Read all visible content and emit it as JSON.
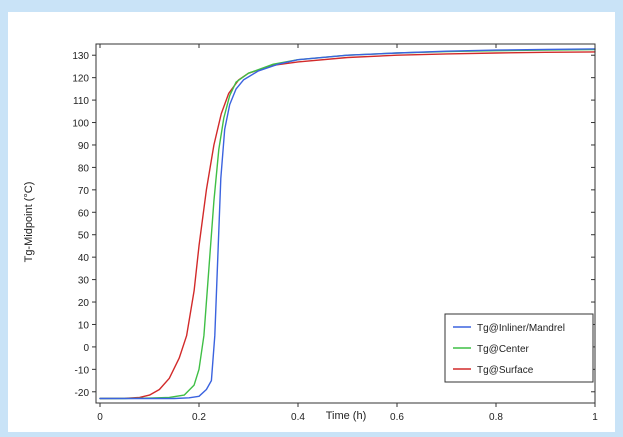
{
  "chart_data": {
    "type": "line",
    "title": "",
    "xlabel": "Time (h)",
    "ylabel": "Tg-Midpoint (°C)",
    "xlim": [
      0,
      1
    ],
    "ylim": [
      -25,
      135
    ],
    "x_ticks": [
      {
        "value": 0,
        "label": "0"
      },
      {
        "value": 0.2,
        "label": "0.2"
      },
      {
        "value": 0.4,
        "label": "0.4"
      },
      {
        "value": 0.6,
        "label": "0.6"
      },
      {
        "value": 0.8,
        "label": "0.8"
      },
      {
        "value": 1,
        "label": "1"
      }
    ],
    "y_ticks": [
      {
        "value": 130,
        "label": "130"
      },
      {
        "value": 120,
        "label": "120"
      },
      {
        "value": 110,
        "label": "110"
      },
      {
        "value": 100,
        "label": "100"
      },
      {
        "value": 90,
        "label": "90"
      },
      {
        "value": 80,
        "label": "80"
      },
      {
        "value": 70,
        "label": "70"
      },
      {
        "value": 60,
        "label": "60"
      },
      {
        "value": 50,
        "label": "50"
      },
      {
        "value": 40,
        "label": "40"
      },
      {
        "value": 30,
        "label": "30"
      },
      {
        "value": 20,
        "label": "20"
      },
      {
        "value": 10,
        "label": "10"
      },
      {
        "value": 0,
        "label": "0"
      },
      {
        "value": -10,
        "label": "-10"
      },
      {
        "value": -20,
        "label": "-20"
      }
    ],
    "grid": false,
    "legend_position": "bottom-right",
    "series": [
      {
        "name": "Tg@Inliner/Mandrel",
        "color": "#3b63df",
        "points": [
          [
            0,
            -23
          ],
          [
            0.05,
            -23
          ],
          [
            0.1,
            -23
          ],
          [
            0.15,
            -23
          ],
          [
            0.18,
            -22.7
          ],
          [
            0.2,
            -22
          ],
          [
            0.215,
            -19
          ],
          [
            0.225,
            -15
          ],
          [
            0.232,
            5
          ],
          [
            0.238,
            40
          ],
          [
            0.244,
            75
          ],
          [
            0.252,
            97
          ],
          [
            0.262,
            108
          ],
          [
            0.275,
            115
          ],
          [
            0.29,
            119
          ],
          [
            0.32,
            123
          ],
          [
            0.36,
            126
          ],
          [
            0.4,
            128
          ],
          [
            0.5,
            130
          ],
          [
            0.6,
            131
          ],
          [
            0.7,
            131.8
          ],
          [
            0.8,
            132.3
          ],
          [
            0.9,
            132.6
          ],
          [
            1.0,
            132.8
          ]
        ]
      },
      {
        "name": "Tg@Center",
        "color": "#3fbf45",
        "points": [
          [
            0,
            -23
          ],
          [
            0.05,
            -23
          ],
          [
            0.1,
            -22.8
          ],
          [
            0.14,
            -22.5
          ],
          [
            0.17,
            -21.5
          ],
          [
            0.19,
            -17
          ],
          [
            0.2,
            -10
          ],
          [
            0.21,
            5
          ],
          [
            0.22,
            35
          ],
          [
            0.23,
            65
          ],
          [
            0.24,
            88
          ],
          [
            0.25,
            102
          ],
          [
            0.262,
            112
          ],
          [
            0.275,
            118
          ],
          [
            0.3,
            122
          ],
          [
            0.35,
            126
          ],
          [
            0.4,
            128
          ],
          [
            0.5,
            130
          ],
          [
            0.6,
            131
          ],
          [
            0.7,
            131.6
          ],
          [
            0.8,
            132
          ],
          [
            0.9,
            132.3
          ],
          [
            1.0,
            132.5
          ]
        ]
      },
      {
        "name": "Tg@Surface",
        "color": "#d22a2a",
        "points": [
          [
            0,
            -23
          ],
          [
            0.05,
            -22.9
          ],
          [
            0.08,
            -22.5
          ],
          [
            0.1,
            -21.5
          ],
          [
            0.12,
            -19
          ],
          [
            0.14,
            -14
          ],
          [
            0.16,
            -5
          ],
          [
            0.175,
            5
          ],
          [
            0.19,
            25
          ],
          [
            0.2,
            45
          ],
          [
            0.215,
            70
          ],
          [
            0.23,
            90
          ],
          [
            0.245,
            104
          ],
          [
            0.26,
            113
          ],
          [
            0.28,
            119
          ],
          [
            0.3,
            122
          ],
          [
            0.35,
            125.5
          ],
          [
            0.4,
            127
          ],
          [
            0.5,
            129
          ],
          [
            0.6,
            130
          ],
          [
            0.7,
            130.6
          ],
          [
            0.8,
            131
          ],
          [
            0.9,
            131.3
          ],
          [
            1.0,
            131.5
          ]
        ]
      }
    ]
  }
}
